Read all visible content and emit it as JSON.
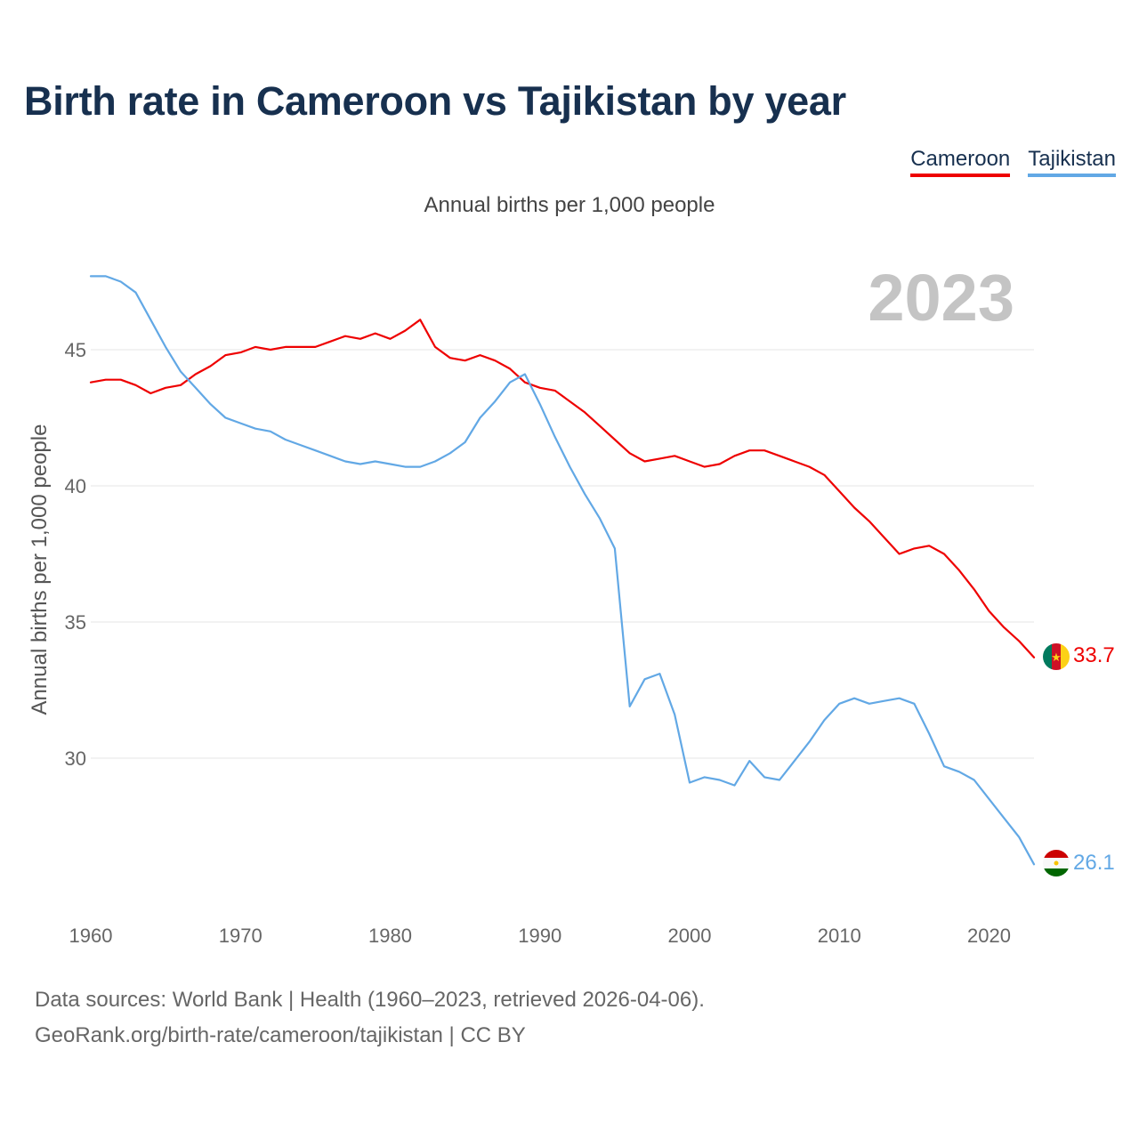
{
  "title": "Birth rate in Cameroon vs Tajikistan by year",
  "subtitle": "Annual births per 1,000 people",
  "legend": [
    {
      "label": "Cameroon",
      "color": "#ee0000"
    },
    {
      "label": "Tajikistan",
      "color": "#62a8e5"
    }
  ],
  "year_badge": "2023",
  "footer": {
    "line1": "Data sources: World Bank | Health (1960–2023, retrieved 2026-04-06).",
    "line2": "GeoRank.org/birth-rate/cameroon/tajikistan | CC BY"
  },
  "chart_data": {
    "type": "line",
    "title": "Birth rate in Cameroon vs Tajikistan by year",
    "ylabel": "Annual births per 1,000 people",
    "xlabel": "",
    "xlim": [
      1960,
      2023
    ],
    "ylim": [
      25,
      48
    ],
    "x_ticks": [
      1960,
      1970,
      1980,
      1990,
      2000,
      2010,
      2020
    ],
    "y_ticks": [
      30,
      35,
      40,
      45
    ],
    "grid": true,
    "x": [
      1960,
      1961,
      1962,
      1963,
      1964,
      1965,
      1966,
      1967,
      1968,
      1969,
      1970,
      1971,
      1972,
      1973,
      1974,
      1975,
      1976,
      1977,
      1978,
      1979,
      1980,
      1981,
      1982,
      1983,
      1984,
      1985,
      1986,
      1987,
      1988,
      1989,
      1990,
      1991,
      1992,
      1993,
      1994,
      1995,
      1996,
      1997,
      1998,
      1999,
      2000,
      2001,
      2002,
      2003,
      2004,
      2005,
      2006,
      2007,
      2008,
      2009,
      2010,
      2011,
      2012,
      2013,
      2014,
      2015,
      2016,
      2017,
      2018,
      2019,
      2020,
      2021,
      2022,
      2023
    ],
    "series": [
      {
        "name": "Cameroon",
        "color": "#ee0000",
        "end_label": "33.7",
        "values": [
          43.8,
          43.9,
          43.9,
          43.7,
          43.4,
          43.6,
          43.7,
          44.1,
          44.4,
          44.8,
          44.9,
          45.1,
          45.0,
          45.1,
          45.1,
          45.1,
          45.3,
          45.5,
          45.4,
          45.6,
          45.4,
          45.7,
          46.1,
          45.1,
          44.7,
          44.6,
          44.8,
          44.6,
          44.3,
          43.8,
          43.6,
          43.5,
          43.1,
          42.7,
          42.2,
          41.7,
          41.2,
          40.9,
          41.0,
          41.1,
          40.9,
          40.7,
          40.8,
          41.1,
          41.3,
          41.3,
          41.1,
          40.9,
          40.7,
          40.4,
          39.8,
          39.2,
          38.7,
          38.1,
          37.5,
          37.7,
          37.8,
          37.5,
          36.9,
          36.2,
          35.4,
          34.8,
          34.3,
          33.7
        ]
      },
      {
        "name": "Tajikistan",
        "color": "#62a8e5",
        "end_label": "26.1",
        "values": [
          47.7,
          47.7,
          47.5,
          47.1,
          46.1,
          45.1,
          44.2,
          43.6,
          43.0,
          42.5,
          42.3,
          42.1,
          42.0,
          41.7,
          41.5,
          41.3,
          41.1,
          40.9,
          40.8,
          40.9,
          40.8,
          40.7,
          40.7,
          40.9,
          41.2,
          41.6,
          42.5,
          43.1,
          43.8,
          44.1,
          43.0,
          41.8,
          40.7,
          39.7,
          38.8,
          37.7,
          31.9,
          32.9,
          33.1,
          31.6,
          29.1,
          29.3,
          29.2,
          29.0,
          29.9,
          29.3,
          29.2,
          29.9,
          30.6,
          31.4,
          32.0,
          32.2,
          32.0,
          32.1,
          32.2,
          32.0,
          30.9,
          29.7,
          29.5,
          29.2,
          28.5,
          27.8,
          27.1,
          26.1
        ]
      }
    ]
  }
}
